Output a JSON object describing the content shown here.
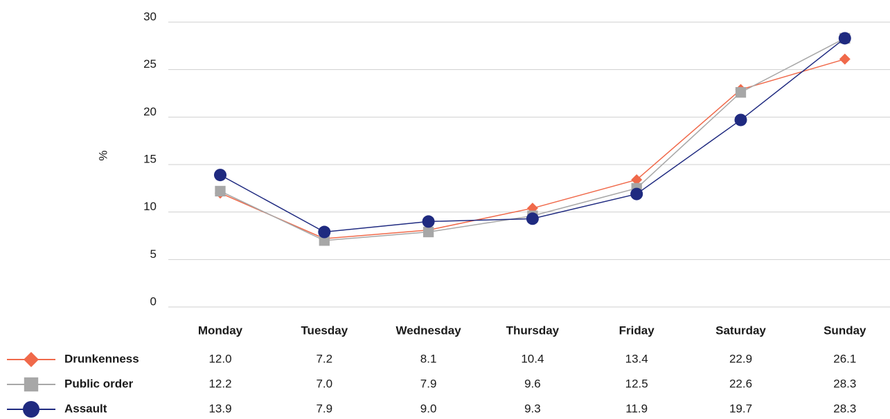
{
  "chart_data": {
    "type": "line",
    "y_label": "%",
    "categories": [
      "Monday",
      "Tuesday",
      "Wednesday",
      "Thursday",
      "Friday",
      "Saturday",
      "Sunday"
    ],
    "series": [
      {
        "name": "Drunkenness",
        "color": "#f0694a",
        "marker": "diamond",
        "values": [
          12.0,
          7.2,
          8.1,
          10.4,
          13.4,
          22.9,
          26.1
        ],
        "value_labels": [
          "12.0",
          "7.2",
          "8.1",
          "10.4",
          "13.4",
          "22.9",
          "26.1"
        ]
      },
      {
        "name": "Public order",
        "color": "#a7a7a7",
        "marker": "square",
        "values": [
          12.2,
          7.0,
          7.9,
          9.6,
          12.5,
          22.6,
          28.3
        ],
        "value_labels": [
          "12.2",
          "7.0",
          "7.9",
          "9.6",
          "12.5",
          "22.6",
          "28.3"
        ]
      },
      {
        "name": "Assault",
        "color": "#1f2a80",
        "marker": "circle",
        "values": [
          13.9,
          7.9,
          9.0,
          9.3,
          11.9,
          19.7,
          28.3
        ],
        "value_labels": [
          "13.9",
          "7.9",
          "9.0",
          "9.3",
          "11.9",
          "19.7",
          "28.3"
        ]
      }
    ],
    "ylim": [
      0,
      30
    ],
    "yticks": [
      0,
      5,
      10,
      15,
      20,
      25,
      30
    ],
    "grid": true
  }
}
